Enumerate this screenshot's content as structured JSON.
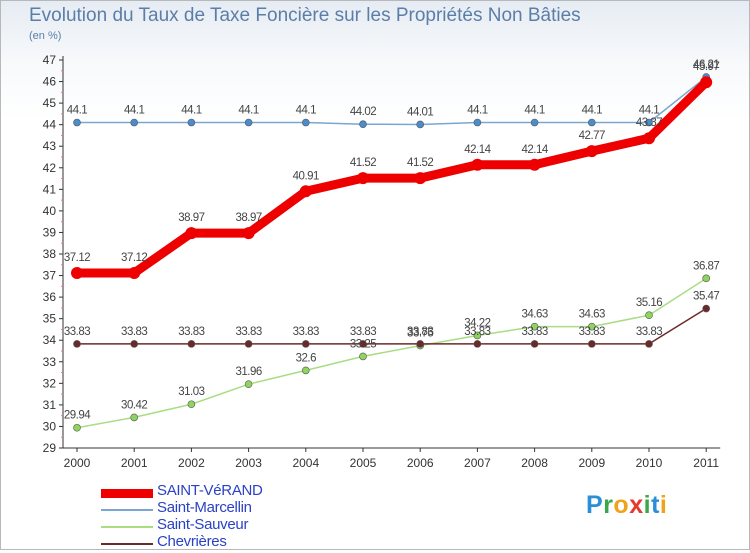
{
  "title": "Evolution du Taux de Taxe Foncière sur les Propriétés Non Bâties",
  "unit_label": "(en %)",
  "logo": {
    "text": "Proxiti",
    "letters": [
      {
        "ch": "P",
        "color": "#2a8fd6"
      },
      {
        "ch": "r",
        "color": "#39a84a"
      },
      {
        "ch": "o",
        "color": "#f0a21a"
      },
      {
        "ch": "x",
        "color": "#e4392c"
      },
      {
        "ch": "i",
        "color": "#39a84a"
      },
      {
        "ch": "t",
        "color": "#2a8fd6"
      },
      {
        "ch": "i",
        "color": "#f0a21a"
      }
    ]
  },
  "legend": [
    {
      "label": "SAINT-VéRAND",
      "color": "#ee0000",
      "weight": "thick"
    },
    {
      "label": "Saint-Marcellin",
      "color": "#7aa7cf",
      "weight": "thin"
    },
    {
      "label": "Saint-Sauveur",
      "color": "#a8dd84",
      "weight": "thin"
    },
    {
      "label": "Chevrières",
      "color": "#6b2a2a",
      "weight": "thin"
    }
  ],
  "chart_data": {
    "type": "line",
    "title": "Evolution du Taux de Taxe Foncière sur les Propriétés Non Bâties",
    "ylabel": "(en %)",
    "xlabel": "",
    "ylim": [
      29,
      47
    ],
    "yticks": [
      29,
      30,
      31,
      32,
      33,
      34,
      35,
      36,
      37,
      38,
      39,
      40,
      41,
      42,
      43,
      44,
      45,
      46,
      47
    ],
    "categories": [
      "2000",
      "2001",
      "2002",
      "2003",
      "2004",
      "2005",
      "2006",
      "2007",
      "2008",
      "2009",
      "2010",
      "2011"
    ],
    "grid": false,
    "series": [
      {
        "name": "SAINT-VéRAND",
        "color": "#ee0000",
        "dot": "#ee0000",
        "width": 9,
        "r": 6,
        "values": [
          37.12,
          37.12,
          38.97,
          38.97,
          40.91,
          41.52,
          41.52,
          42.14,
          42.14,
          42.77,
          43.37,
          45.97
        ],
        "labels": [
          "37.12",
          "37.12",
          "38.97",
          "38.97",
          "40.91",
          "41.52",
          "41.52",
          "42.14",
          "42.14",
          "42.77",
          "43.37",
          "45.97"
        ]
      },
      {
        "name": "Saint-Marcellin",
        "color": "#7aa7cf",
        "dot": "#4a8ccc",
        "width": 1.5,
        "r": 3.5,
        "values": [
          44.1,
          44.1,
          44.1,
          44.1,
          44.1,
          44.02,
          44.01,
          44.1,
          44.1,
          44.1,
          44.1,
          46.21
        ],
        "labels": [
          "44.1",
          "44.1",
          "44.1",
          "44.1",
          "44.1",
          "44.02",
          "44.01",
          "44.1",
          "44.1",
          "44.1",
          "44.1",
          "46.21"
        ]
      },
      {
        "name": "Saint-Sauveur",
        "color": "#a8dd84",
        "dot": "#8fd45f",
        "width": 1.5,
        "r": 3.5,
        "values": [
          29.94,
          30.42,
          31.03,
          31.96,
          32.6,
          33.25,
          33.75,
          34.22,
          34.63,
          34.63,
          35.16,
          36.87
        ],
        "labels": [
          "29.94",
          "30.42",
          "31.03",
          "31.96",
          "32.6",
          "33.25",
          "33.75",
          "34.22",
          "34.63",
          "34.63",
          "35.16",
          "36.87"
        ]
      },
      {
        "name": "Chevrières",
        "color": "#6b2a2a",
        "dot": "#6b2a2a",
        "width": 1.5,
        "r": 3.5,
        "values": [
          33.83,
          33.83,
          33.83,
          33.83,
          33.83,
          33.83,
          33.83,
          33.83,
          33.83,
          33.83,
          33.83,
          35.47
        ],
        "labels": [
          "33.83",
          "33.83",
          "33.83",
          "33.83",
          "33.83",
          "33.83",
          "33.83",
          "33.83",
          "33.83",
          "33.83",
          "33.83",
          "35.47"
        ]
      }
    ]
  }
}
